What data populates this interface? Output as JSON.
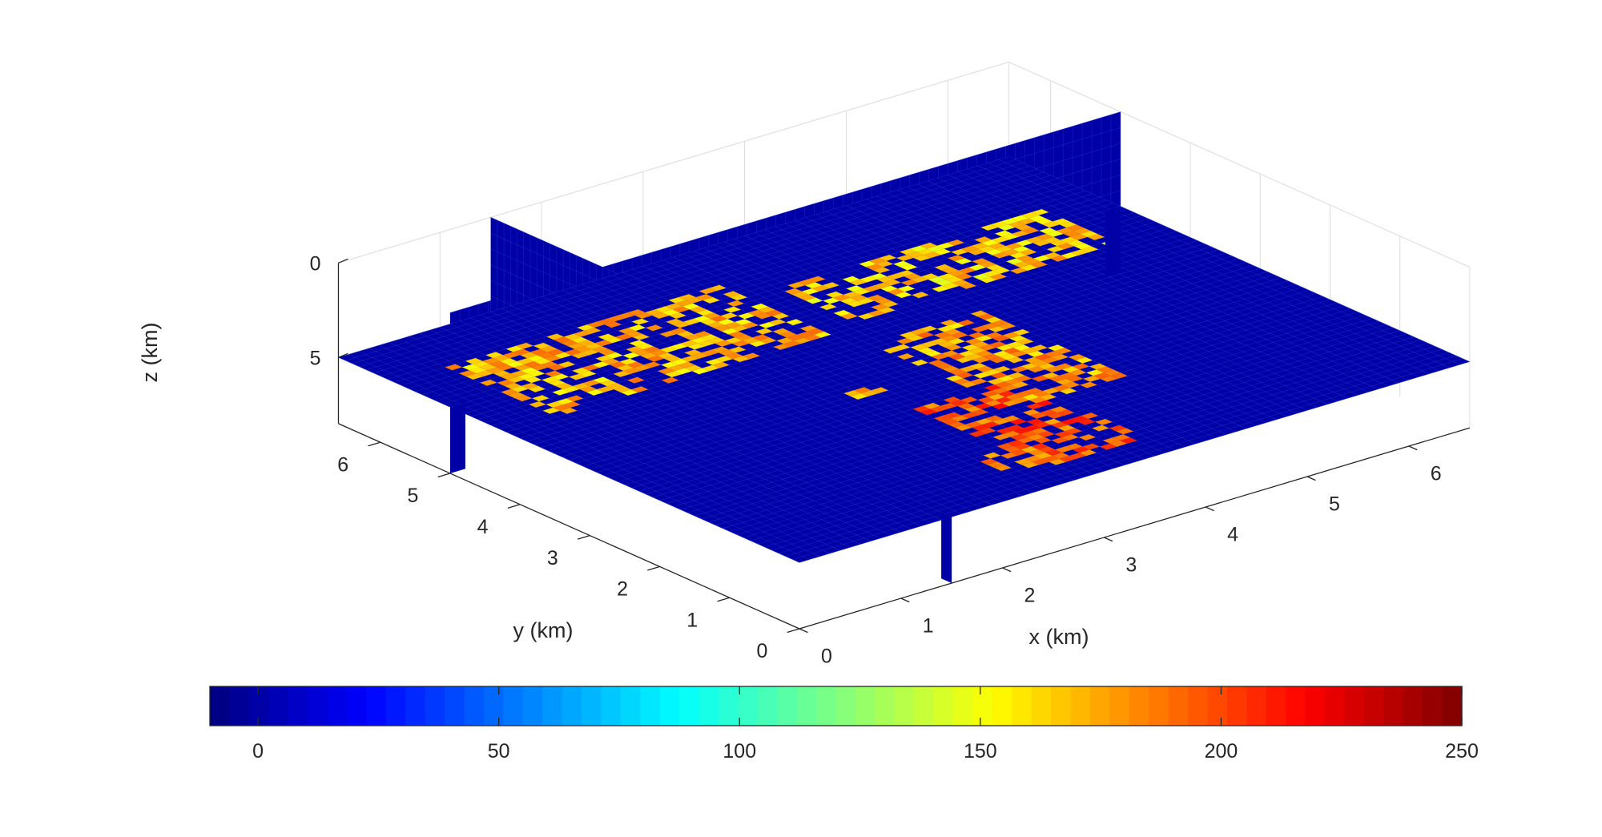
{
  "chart_data": {
    "type": "heatmap",
    "plot_style": "3d-slice",
    "colormap": "jet",
    "axes": {
      "x": {
        "label": "x (km)",
        "ticks": [
          0,
          1,
          2,
          3,
          4,
          5,
          6
        ],
        "range": [
          0,
          6.6
        ]
      },
      "y": {
        "label": "y (km)",
        "ticks": [
          0,
          1,
          2,
          3,
          4,
          5,
          6
        ],
        "range": [
          0,
          6.6
        ]
      },
      "z": {
        "label": "z (km)",
        "ticks": [
          0,
          5
        ],
        "range": [
          0,
          8.5
        ],
        "reversed": true
      }
    },
    "slices": [
      {
        "orientation": "horizontal",
        "plane": "z",
        "value": 5
      },
      {
        "orientation": "vertical",
        "plane": "x",
        "value": 1.5
      },
      {
        "orientation": "vertical",
        "plane": "y",
        "value": 5
      }
    ],
    "background_value": 0,
    "anomalies": [
      {
        "x": [
          0.5,
          3.2
        ],
        "y": [
          4.2,
          5.7
        ],
        "value": 170,
        "note": "band along upper slice"
      },
      {
        "x": [
          3.5,
          6.0
        ],
        "y": [
          4.3,
          5.3
        ],
        "value": 165,
        "note": "band along upper slice"
      },
      {
        "x": [
          2.7,
          3.7
        ],
        "y": [
          0.4,
          2.3
        ],
        "value": 195
      },
      {
        "x": [
          3.3,
          4.3
        ],
        "y": [
          1.7,
          3.8
        ],
        "value": 175
      },
      {
        "x": [
          2.4,
          2.9
        ],
        "y": [
          0.5,
          0.9
        ],
        "value": 185
      },
      {
        "x": [
          2.5,
          2.8
        ],
        "y": [
          2.8,
          3.0
        ],
        "value": 170
      }
    ],
    "colorbar": {
      "orientation": "horizontal",
      "range": [
        -10,
        250
      ],
      "ticks": [
        0,
        50,
        100,
        150,
        200,
        250
      ]
    }
  }
}
